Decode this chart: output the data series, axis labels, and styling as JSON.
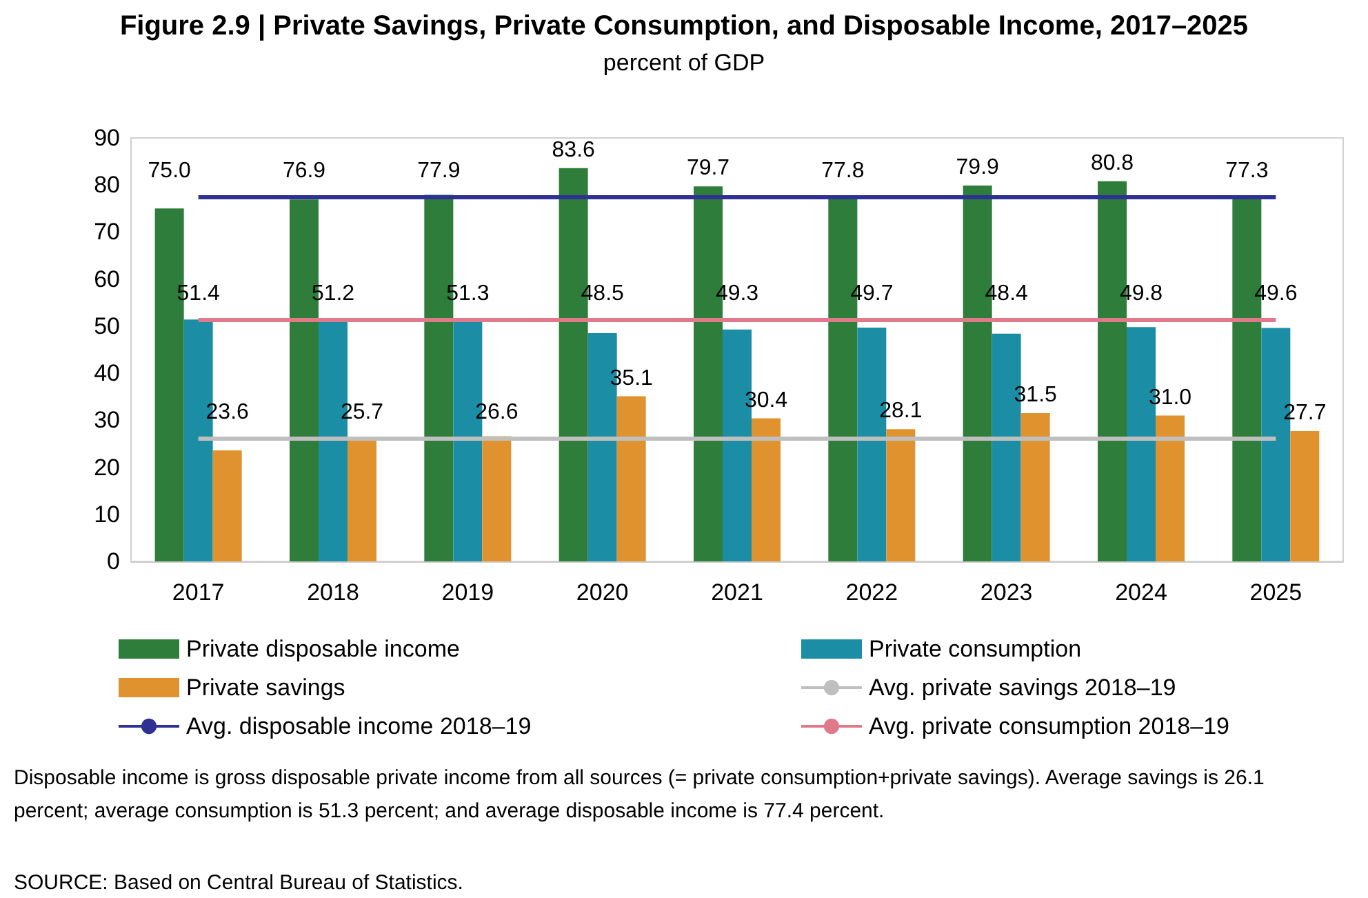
{
  "chart_data": {
    "type": "bar",
    "title": "Figure 2.9 | Private Savings, Private Consumption, and Disposable Income, 2017–2025",
    "subtitle": "percent of GDP",
    "categories": [
      "2017",
      "2018",
      "2019",
      "2020",
      "2021",
      "2022",
      "2023",
      "2024",
      "2025"
    ],
    "series": [
      {
        "name": "Private disposable income",
        "color": "#2e7d3a",
        "values": [
          75.0,
          76.9,
          77.9,
          83.6,
          79.7,
          77.8,
          79.9,
          80.8,
          77.3
        ],
        "value_labels": [
          "75.0",
          "76.9",
          "77.9",
          "83.6",
          "79.7",
          "77.8",
          "79.9",
          "80.8",
          "77.3"
        ]
      },
      {
        "name": "Private consumption",
        "color": "#1b8ea6",
        "values": [
          51.4,
          51.2,
          51.3,
          48.5,
          49.3,
          49.7,
          48.4,
          49.8,
          49.6
        ],
        "value_labels": [
          "51.4",
          "51.2",
          "51.3",
          "48.5",
          "49.3",
          "49.7",
          "48.4",
          "49.8",
          "49.6"
        ]
      },
      {
        "name": "Private savings",
        "color": "#e0922f",
        "values": [
          23.6,
          25.7,
          26.6,
          35.1,
          30.4,
          28.1,
          31.5,
          31.0,
          27.7
        ],
        "value_labels": [
          "23.6",
          "25.7",
          "26.6",
          "35.1",
          "30.4",
          "28.1",
          "31.5",
          "31.0",
          "27.7"
        ]
      },
      {
        "name": "Avg. private savings 2018–19",
        "type": "line",
        "color": "#bfbfbf",
        "values": [
          26.1,
          26.1,
          26.1,
          26.1,
          26.1,
          26.1,
          26.1,
          26.1,
          26.1
        ]
      },
      {
        "name": "Avg. disposable income 2018–19",
        "type": "line",
        "color": "#2e3192",
        "values": [
          77.4,
          77.4,
          77.4,
          77.4,
          77.4,
          77.4,
          77.4,
          77.4,
          77.4
        ]
      },
      {
        "name": "Avg. private consumption 2018–19",
        "type": "line",
        "color": "#e07a8a",
        "values": [
          51.3,
          51.3,
          51.3,
          51.3,
          51.3,
          51.3,
          51.3,
          51.3,
          51.3
        ]
      }
    ],
    "ylim": [
      0,
      90
    ],
    "yticks": [
      0,
      10,
      20,
      30,
      40,
      50,
      60,
      70,
      80,
      90
    ],
    "grid": false,
    "legend": "bottom",
    "marker": "none",
    "annotations": [
      "Disposable income is gross disposable private income from all sources (= private consumption+private savings). Average savings is 26.1 percent; average consumption is 51.3 percent; and average disposable income is 77.4 percent.",
      "SOURCE: Based on Central Bureau of Statistics."
    ]
  }
}
